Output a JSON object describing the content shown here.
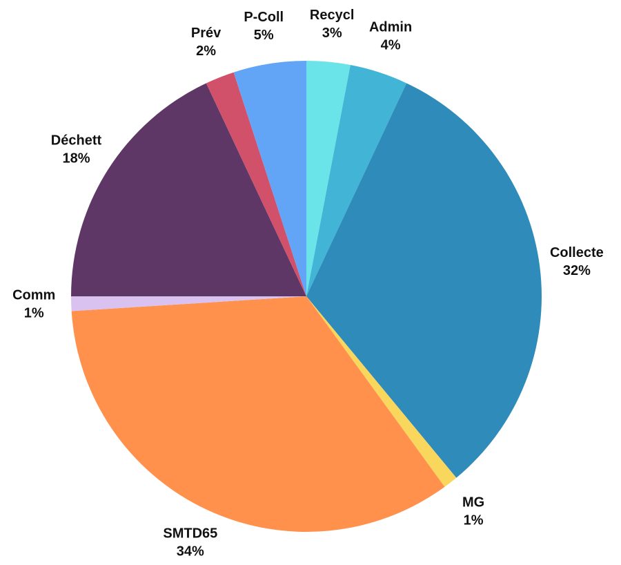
{
  "chart_data": {
    "type": "pie",
    "categories": [
      "Recycl",
      "Admin",
      "Collecte",
      "MG",
      "SMTD65",
      "Comm",
      "Déchett",
      "Prév",
      "P-Coll"
    ],
    "values": [
      3,
      4,
      32,
      1,
      34,
      1,
      18,
      2,
      5
    ],
    "value_labels": [
      "3%",
      "4%",
      "32%",
      "1%",
      "34%",
      "1%",
      "18%",
      "2%",
      "5%"
    ],
    "colors": [
      "#6ae4e8",
      "#42b5d6",
      "#2e8bba",
      "#f9d65c",
      "#ff914d",
      "#d9c2f0",
      "#5e3766",
      "#d1506a",
      "#62a5f7"
    ]
  }
}
